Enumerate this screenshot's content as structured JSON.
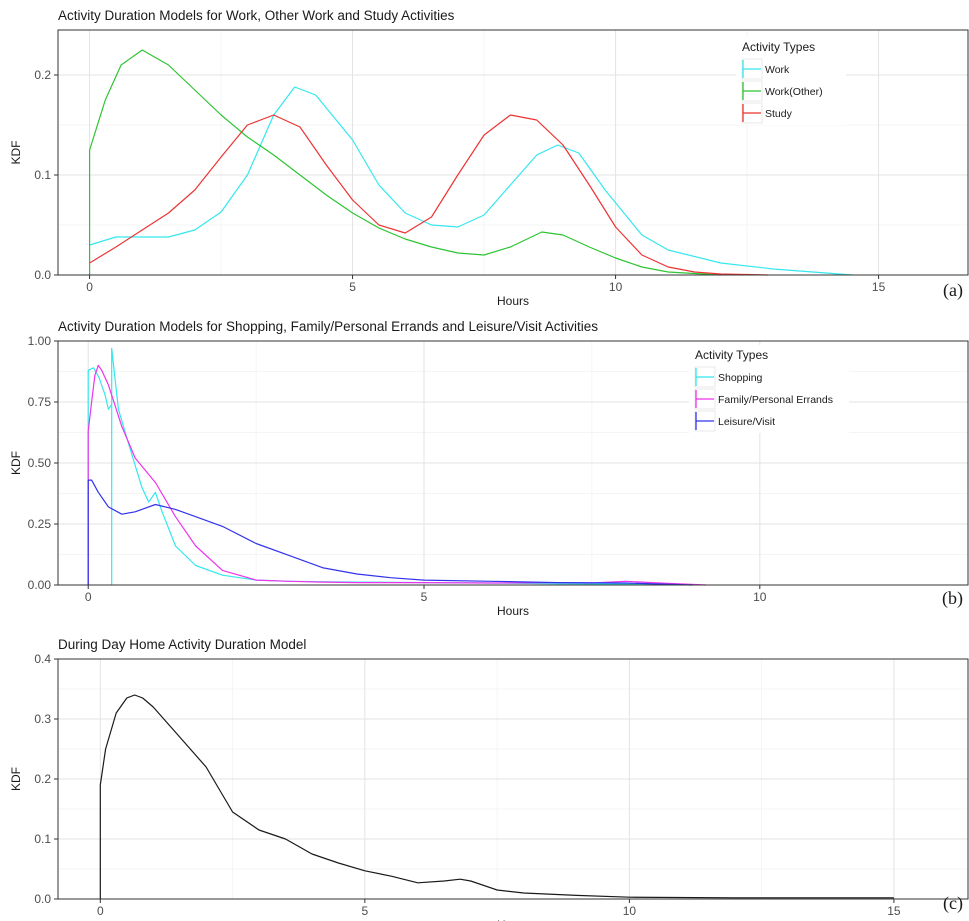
{
  "chart_data": [
    {
      "type": "line",
      "panel_tag": "(a)",
      "title": "Activity Duration Models for Work, Other Work and Study Activities",
      "xlabel": "Hours",
      "ylabel": "KDF",
      "xlim": [
        -0.6,
        16.7
      ],
      "ylim": [
        0,
        0.245
      ],
      "xticks": [
        0,
        5,
        10,
        15
      ],
      "yticks": [
        0.0,
        0.1,
        0.2
      ],
      "ytick_labels": [
        "0.0",
        "0.1",
        "0.2"
      ],
      "grid": true,
      "legend": {
        "title": "Activity Types",
        "position": "top-right"
      },
      "series": [
        {
          "name": "Work",
          "color": "#33e8ee",
          "x": [
            0,
            0.5,
            1,
            1.5,
            2,
            2.5,
            3,
            3.5,
            3.9,
            4.3,
            5,
            5.5,
            6,
            6.5,
            7,
            7.5,
            8,
            8.5,
            8.9,
            9.3,
            9.8,
            10.5,
            11,
            12,
            13,
            14,
            14.5
          ],
          "y": [
            0.03,
            0.038,
            0.038,
            0.038,
            0.045,
            0.063,
            0.1,
            0.16,
            0.188,
            0.18,
            0.135,
            0.09,
            0.062,
            0.05,
            0.048,
            0.06,
            0.09,
            0.12,
            0.13,
            0.122,
            0.085,
            0.04,
            0.025,
            0.012,
            0.006,
            0.002,
            0.0
          ]
        },
        {
          "name": "Work(Other)",
          "color": "#2ec433",
          "x": [
            0,
            0,
            0.3,
            0.6,
            1,
            1.5,
            2,
            2.5,
            3,
            3.5,
            4,
            4.5,
            5,
            5.5,
            6,
            6.5,
            7,
            7.5,
            8,
            8.6,
            9,
            9.5,
            10,
            10.5,
            11,
            12
          ],
          "y": [
            0,
            0.125,
            0.175,
            0.21,
            0.225,
            0.21,
            0.185,
            0.16,
            0.138,
            0.12,
            0.1,
            0.08,
            0.062,
            0.047,
            0.036,
            0.028,
            0.022,
            0.02,
            0.028,
            0.043,
            0.04,
            0.028,
            0.017,
            0.008,
            0.003,
            0.0
          ]
        },
        {
          "name": "Study",
          "color": "#ee3333",
          "x": [
            0,
            0.5,
            1,
            1.5,
            2,
            2.5,
            3,
            3.5,
            4,
            4.5,
            5,
            5.5,
            6,
            6.5,
            7,
            7.5,
            8,
            8.5,
            9,
            9.5,
            10,
            10.5,
            11,
            11.5,
            12,
            12.9
          ],
          "y": [
            0.012,
            0.028,
            0.045,
            0.062,
            0.085,
            0.118,
            0.15,
            0.16,
            0.148,
            0.11,
            0.075,
            0.05,
            0.042,
            0.058,
            0.1,
            0.14,
            0.16,
            0.155,
            0.13,
            0.09,
            0.048,
            0.02,
            0.008,
            0.003,
            0.001,
            0.0
          ]
        }
      ]
    },
    {
      "type": "line",
      "panel_tag": "(b)",
      "title": "Activity Duration Models for Shopping, Family/Personal Errands and Leisure/Visit Activities",
      "xlabel": "Hours",
      "ylabel": "KDF",
      "xlim": [
        -0.45,
        13.1
      ],
      "ylim": [
        0,
        1.0
      ],
      "xticks": [
        0,
        5,
        10
      ],
      "yticks": [
        0.0,
        0.25,
        0.5,
        0.75,
        1.0
      ],
      "ytick_labels": [
        "0.00",
        "0.25",
        "0.50",
        "0.75",
        "1.00"
      ],
      "grid": true,
      "legend": {
        "title": "Activity Types",
        "position": "top-right"
      },
      "series": [
        {
          "name": "Shopping",
          "color": "#33e8ee",
          "x": [
            0,
            0,
            0.08,
            0.16,
            0.25,
            0.3,
            0.35,
            0.35,
            0.35,
            0.45,
            0.6,
            0.8,
            0.9,
            1,
            1.1,
            1.3,
            1.6,
            2,
            2.5,
            3,
            4,
            5,
            6,
            7,
            8,
            9
          ],
          "y": [
            0,
            0.88,
            0.89,
            0.85,
            0.78,
            0.72,
            0.74,
            0.0,
            0.97,
            0.72,
            0.58,
            0.4,
            0.34,
            0.38,
            0.3,
            0.16,
            0.08,
            0.04,
            0.02,
            0.015,
            0.012,
            0.01,
            0.008,
            0.005,
            0.004,
            0.0
          ]
        },
        {
          "name": "Family/Personal Errands",
          "color": "#ee33ee",
          "x": [
            0,
            0,
            0.05,
            0.1,
            0.15,
            0.2,
            0.3,
            0.5,
            0.7,
            1,
            1.3,
            1.6,
            2,
            2.5,
            3,
            3.5,
            4,
            5,
            6,
            7,
            7.5,
            8,
            8.5,
            9.2
          ],
          "y": [
            0,
            0.63,
            0.75,
            0.86,
            0.9,
            0.88,
            0.82,
            0.65,
            0.52,
            0.42,
            0.28,
            0.16,
            0.06,
            0.02,
            0.015,
            0.012,
            0.01,
            0.01,
            0.008,
            0.01,
            0.008,
            0.015,
            0.008,
            0.0
          ]
        },
        {
          "name": "Leisure/Visit",
          "color": "#3333ee",
          "x": [
            0,
            0,
            0.05,
            0.15,
            0.3,
            0.5,
            0.7,
            1,
            1.3,
            1.6,
            2,
            2.5,
            3,
            3.5,
            4,
            4.5,
            5,
            6,
            7,
            8,
            9
          ],
          "y": [
            0,
            0.43,
            0.43,
            0.38,
            0.32,
            0.29,
            0.3,
            0.33,
            0.31,
            0.28,
            0.24,
            0.17,
            0.12,
            0.07,
            0.045,
            0.03,
            0.02,
            0.015,
            0.01,
            0.008,
            0.0
          ]
        }
      ]
    },
    {
      "type": "line",
      "panel_tag": "(c)",
      "title": "During Day Home Activity Duration Model",
      "xlabel": "Hours",
      "ylabel": "KDF",
      "xlim": [
        -0.8,
        16.4
      ],
      "ylim": [
        0,
        0.4
      ],
      "xticks": [
        0,
        5,
        10,
        15
      ],
      "yticks": [
        0.0,
        0.1,
        0.2,
        0.3,
        0.4
      ],
      "ytick_labels": [
        "0.0",
        "0.1",
        "0.2",
        "0.3",
        "0.4"
      ],
      "grid": true,
      "legend": null,
      "series": [
        {
          "name": "",
          "color": "#1a1a1a",
          "x": [
            0,
            0,
            0.1,
            0.3,
            0.5,
            0.65,
            0.8,
            1,
            1.3,
            1.6,
            2,
            2.5,
            3,
            3.5,
            4,
            4.5,
            5,
            5.5,
            6,
            6.5,
            6.8,
            7,
            7.5,
            8,
            9,
            10,
            12,
            15
          ],
          "y": [
            0,
            0.19,
            0.25,
            0.31,
            0.335,
            0.34,
            0.335,
            0.32,
            0.29,
            0.26,
            0.22,
            0.145,
            0.115,
            0.1,
            0.075,
            0.06,
            0.047,
            0.038,
            0.027,
            0.03,
            0.033,
            0.03,
            0.015,
            0.01,
            0.006,
            0.003,
            0.002,
            0.002
          ]
        }
      ]
    }
  ]
}
